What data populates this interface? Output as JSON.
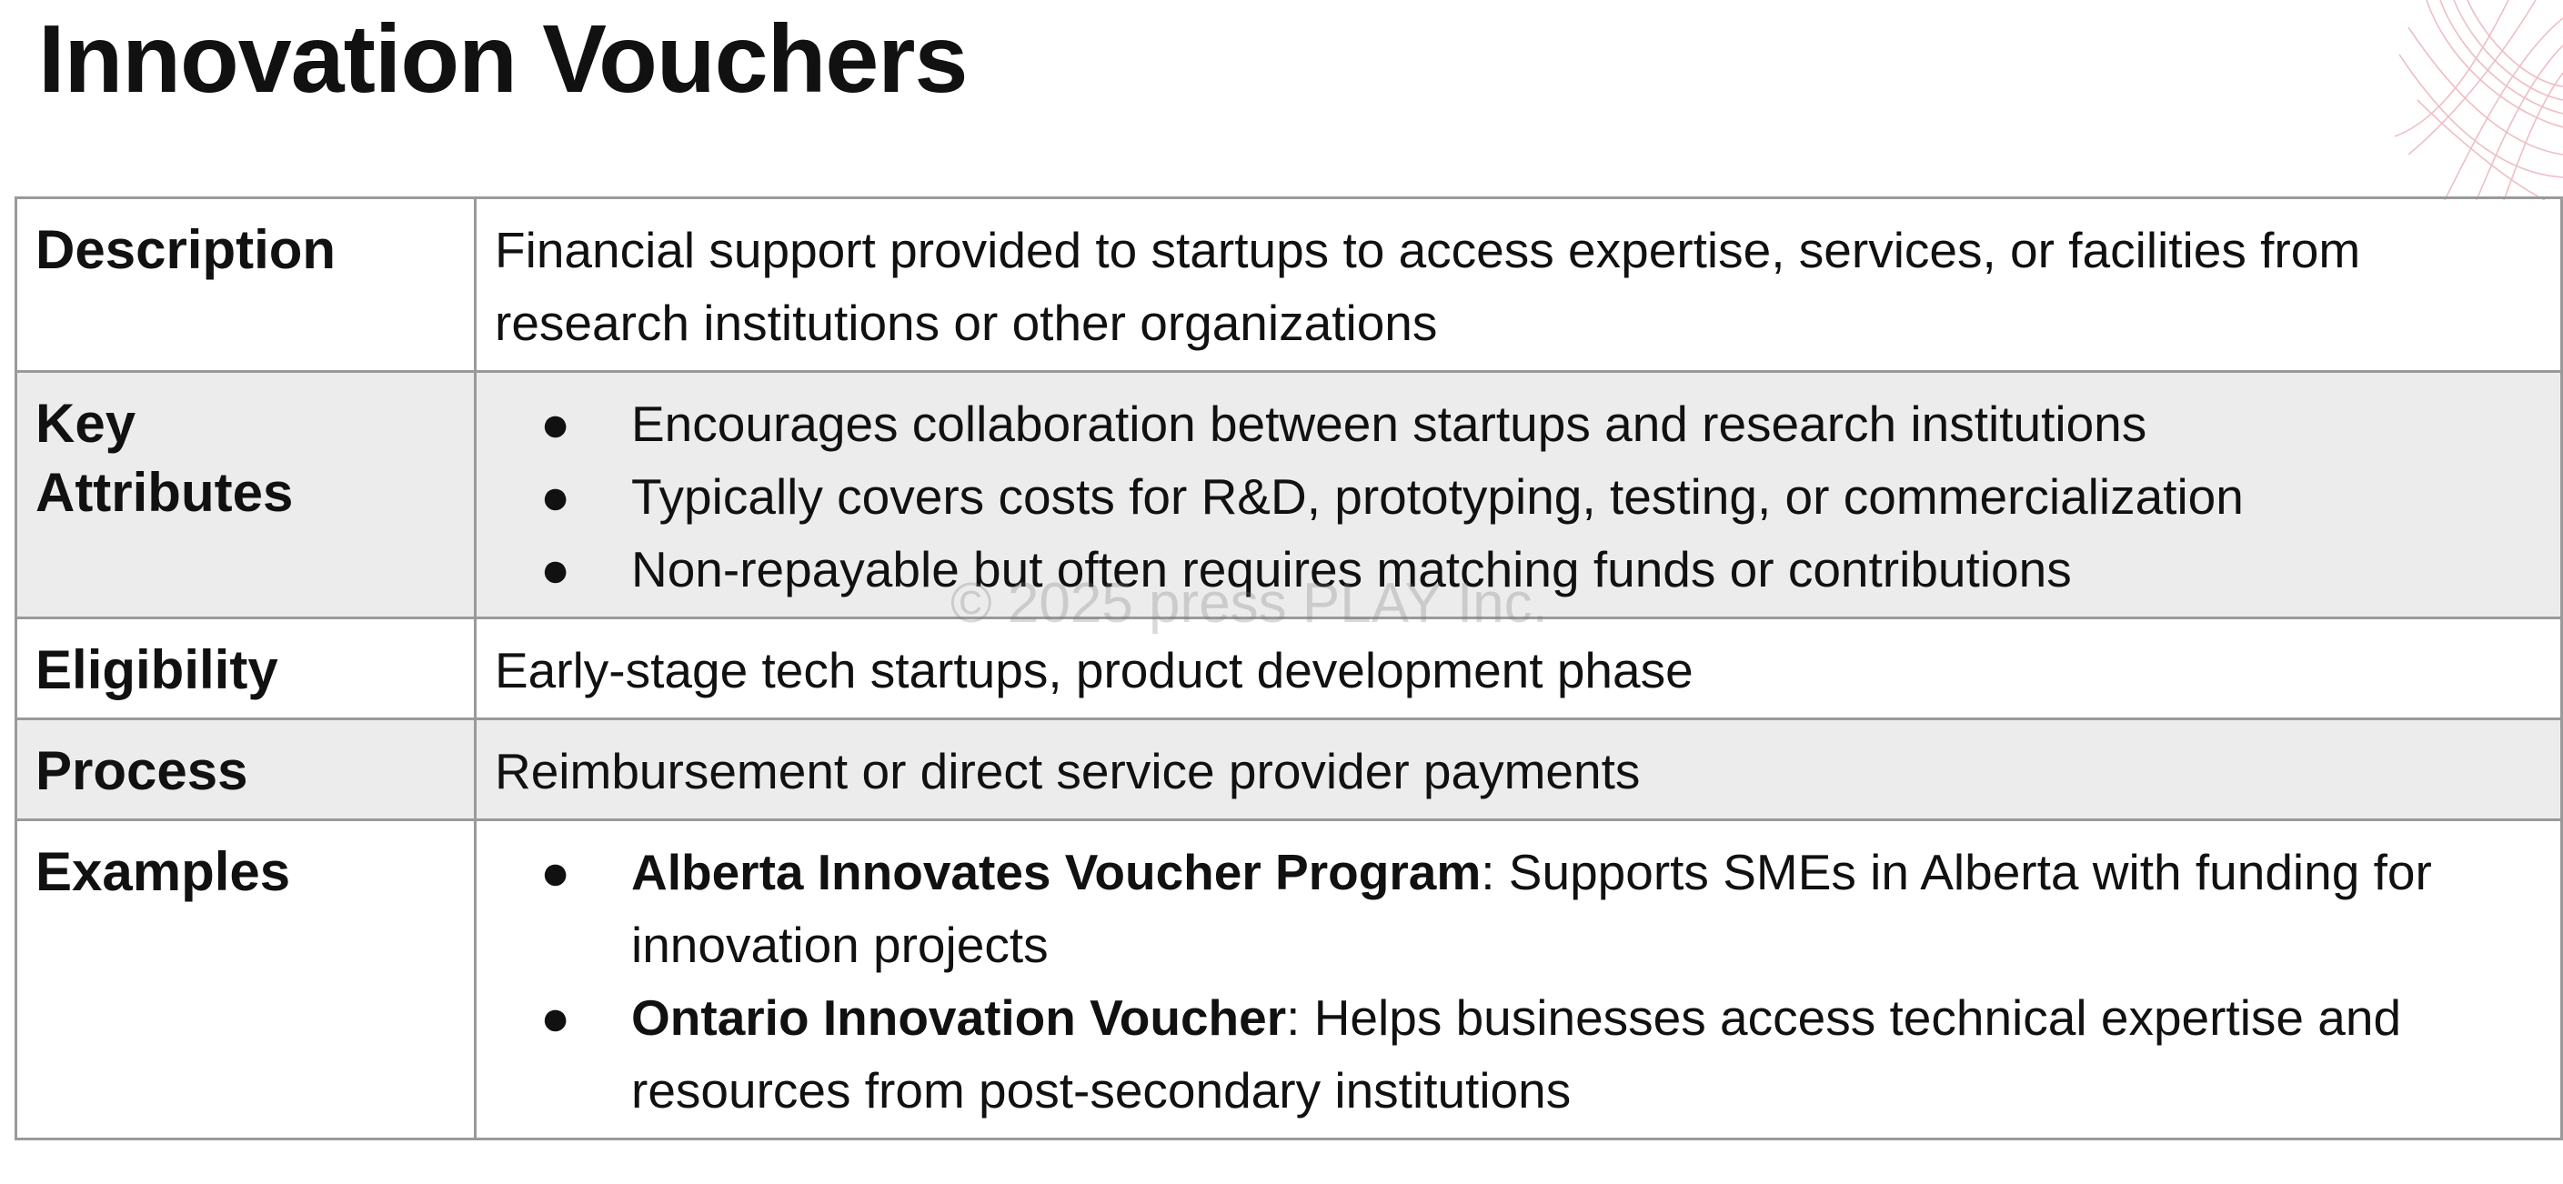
{
  "title": "Innovation Vouchers",
  "watermark": "© 2025 press PLAY Inc.",
  "bullet_glyph": "●",
  "rows": [
    {
      "label": "Description",
      "text": "Financial support provided to startups to access expertise, services, or facilities from research institutions or other organizations"
    },
    {
      "label_line1": "Key",
      "label_line2": "Attributes",
      "bullets": [
        "Encourages collaboration between startups and research institutions",
        "Typically covers costs for R&D, prototyping, testing, or commercialization",
        "Non-repayable but often requires matching funds or contributions"
      ]
    },
    {
      "label": "Eligibility",
      "text": "Early-stage tech startups, product development phase"
    },
    {
      "label": "Process",
      "text": "Reimbursement or direct service provider payments"
    },
    {
      "label": "Examples",
      "examples": [
        {
          "name": "Alberta Innovates Voucher Program",
          "detail": ": Supports SMEs in Alberta with funding for innovation projects"
        },
        {
          "name": "Ontario Innovation Voucher",
          "detail": ": Helps businesses access technical expertise and resources from post-secondary institutions"
        }
      ]
    }
  ],
  "colors": {
    "shaded_row": "#ececec",
    "border": "#9a9a9a",
    "decoration": "#e8a9b2"
  }
}
